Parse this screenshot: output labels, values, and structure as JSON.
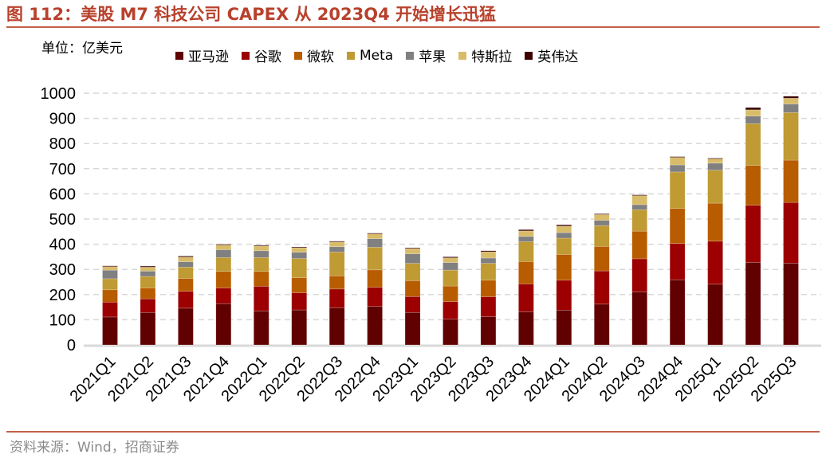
{
  "title": "图 112：美股 M7 科技公司 CAPEX 从 2023Q4 开始增长迅猛",
  "source": "资料来源：Wind，招商证券",
  "chart_data": {
    "type": "bar",
    "stacked": true,
    "title": "",
    "ylabel": "单位：亿美元",
    "xlabel": "",
    "ylim": [
      0,
      1000
    ],
    "yticks": [
      0,
      100,
      200,
      300,
      400,
      500,
      600,
      700,
      800,
      900,
      1000
    ],
    "grid": true,
    "legend_position": "top",
    "categories": [
      "2021Q1",
      "2021Q2",
      "2021Q3",
      "2021Q4",
      "2022Q1",
      "2022Q2",
      "2022Q3",
      "2022Q4",
      "2023Q1",
      "2023Q2",
      "2023Q3",
      "2023Q4",
      "2024Q1",
      "2024Q2",
      "2024Q3",
      "2024Q4",
      "2025Q1",
      "2025Q2",
      "2025Q3"
    ],
    "series": [
      {
        "name": "亚马逊",
        "color": "#600000",
        "values": [
          111,
          129,
          146,
          164,
          135,
          139,
          148,
          153,
          129,
          102,
          112,
          132,
          138,
          162,
          211,
          259,
          241,
          328,
          325
        ]
      },
      {
        "name": "谷歌",
        "color": "#9C0000",
        "values": [
          59,
          54,
          67,
          62,
          98,
          68,
          74,
          76,
          63,
          70,
          79,
          110,
          119,
          132,
          131,
          144,
          171,
          227,
          241
        ]
      },
      {
        "name": "微软",
        "color": "#B85C00",
        "values": [
          49,
          43,
          51,
          66,
          59,
          60,
          52,
          69,
          63,
          62,
          66,
          89,
          102,
          97,
          110,
          139,
          151,
          158,
          168
        ]
      },
      {
        "name": "Meta",
        "color": "#C09A32",
        "values": [
          44,
          46,
          45,
          55,
          55,
          76,
          95,
          90,
          69,
          63,
          67,
          79,
          65,
          83,
          85,
          145,
          131,
          166,
          189
        ]
      },
      {
        "name": "苹果",
        "color": "#808080",
        "values": [
          34,
          21,
          21,
          31,
          27,
          25,
          21,
          34,
          38,
          30,
          21,
          21,
          22,
          21,
          20,
          28,
          28,
          30,
          34
        ]
      },
      {
        "name": "特斯拉",
        "color": "#D9BC6A",
        "values": [
          14,
          16,
          19,
          19,
          19,
          18,
          19,
          19,
          21,
          19,
          25,
          22,
          26,
          23,
          36,
          30,
          17,
          25,
          23
        ]
      },
      {
        "name": "英伟达",
        "color": "#3C0000",
        "values": [
          3,
          4,
          4,
          3,
          3,
          3,
          3,
          3,
          3,
          4,
          4,
          5,
          5,
          3,
          3,
          3,
          3,
          9,
          8
        ]
      }
    ]
  }
}
